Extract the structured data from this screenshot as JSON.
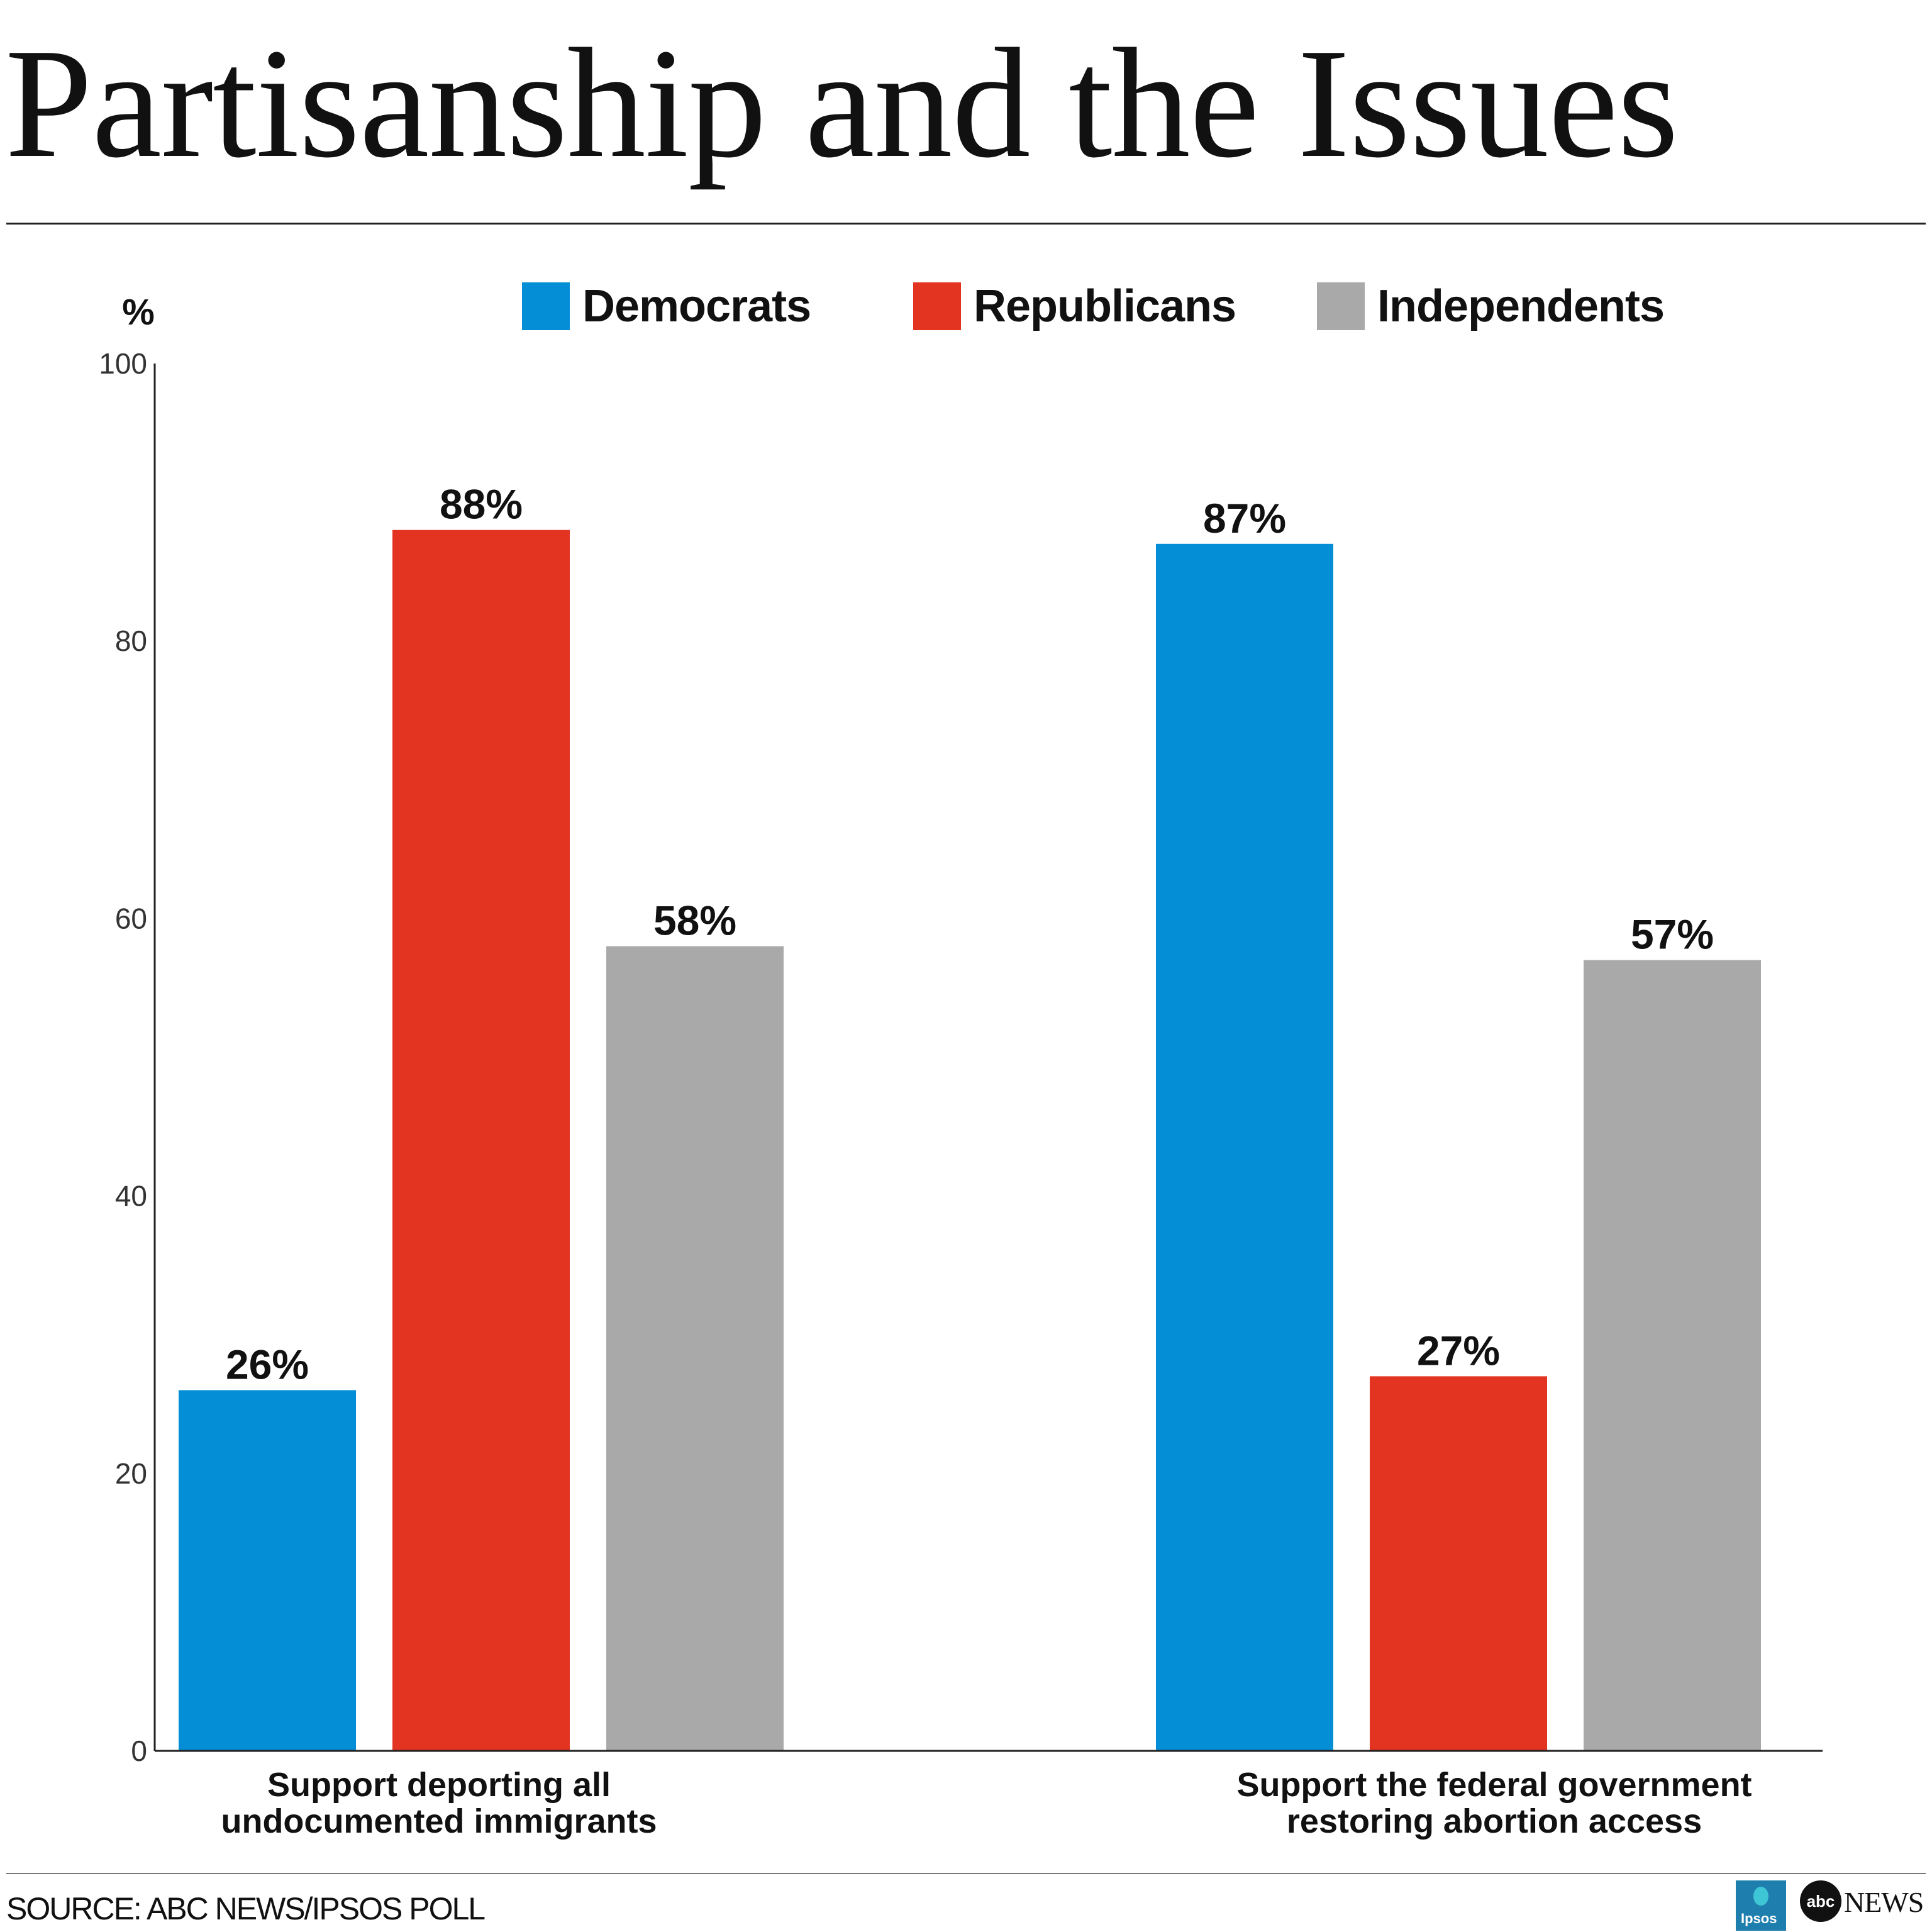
{
  "colors": {
    "democrats": "#038ed6",
    "republicans": "#e23421",
    "independents": "#a9a9a9"
  },
  "chart_data": {
    "type": "bar",
    "title": "Partisanship and the Issues",
    "ylabel": "%",
    "ylim": [
      0,
      100
    ],
    "yticks": [
      0,
      20,
      40,
      60,
      80,
      100
    ],
    "categories": [
      [
        "Support deporting all",
        "undocumented immigrants"
      ],
      [
        "Support the federal government",
        "restoring abortion access"
      ]
    ],
    "series": [
      {
        "name": "Democrats",
        "color": "#038ed6",
        "values": [
          26,
          87
        ],
        "labels": [
          "26%",
          "87%"
        ]
      },
      {
        "name": "Republicans",
        "color": "#e23421",
        "values": [
          88,
          27
        ],
        "labels": [
          "88%",
          "27%"
        ]
      },
      {
        "name": "Independents",
        "color": "#a9a9a9",
        "values": [
          58,
          57
        ],
        "labels": [
          "58%",
          "57%"
        ]
      }
    ],
    "legend": "top",
    "grid": false
  },
  "footer": {
    "source": "SOURCE: ABC NEWS/IPSOS POLL",
    "logos": {
      "ipsos": "Ipsos",
      "abc": "abc",
      "news": "NEWS"
    }
  }
}
